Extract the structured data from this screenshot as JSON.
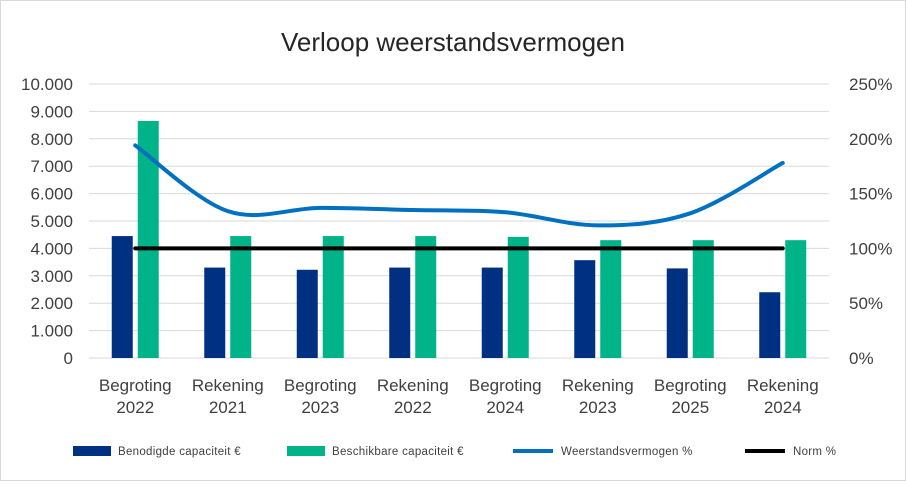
{
  "chart_data": {
    "type": "bar",
    "title": "Verloop weerstandsvermogen",
    "categories": [
      [
        "Begroting",
        "2022"
      ],
      [
        "Rekening",
        "2021"
      ],
      [
        "Begroting",
        "2023"
      ],
      [
        "Rekening",
        "2022"
      ],
      [
        "Begroting",
        "2024"
      ],
      [
        "Rekening",
        "2023"
      ],
      [
        "Begroting",
        "2025"
      ],
      [
        "Rekening",
        "2024"
      ]
    ],
    "y_left": {
      "min": 0,
      "max": 10000,
      "step": 1000,
      "tick_labels": [
        "0",
        "1.000",
        "2.000",
        "3.000",
        "4.000",
        "5.000",
        "6.000",
        "7.000",
        "8.000",
        "9.000",
        "10.000"
      ]
    },
    "y_right": {
      "min": 0,
      "max": 250,
      "step": 50,
      "tick_labels": [
        "0%",
        "50%",
        "100%",
        "150%",
        "200%",
        "250%"
      ]
    },
    "grid": true,
    "legend_position": "bottom",
    "series": [
      {
        "name": "Benodigde capaciteit €",
        "type": "bar",
        "axis": "left",
        "color": "#003082",
        "values": [
          4450,
          3300,
          3220,
          3300,
          3300,
          3570,
          3270,
          2400
        ]
      },
      {
        "name": "Beschikbare capaciteit €",
        "type": "bar",
        "axis": "left",
        "color": "#00b388",
        "values": [
          8650,
          4450,
          4450,
          4450,
          4420,
          4300,
          4300,
          4300
        ]
      },
      {
        "name": "Weerstandsvermogen %",
        "type": "line",
        "smooth": true,
        "axis": "right",
        "color": "#0070c0",
        "values": [
          194,
          134,
          137,
          135,
          133,
          121,
          132,
          178
        ]
      },
      {
        "name": "Norm %",
        "type": "line",
        "axis": "right",
        "color": "#000000",
        "values": [
          100,
          100,
          100,
          100,
          100,
          100,
          100,
          100
        ]
      }
    ]
  }
}
